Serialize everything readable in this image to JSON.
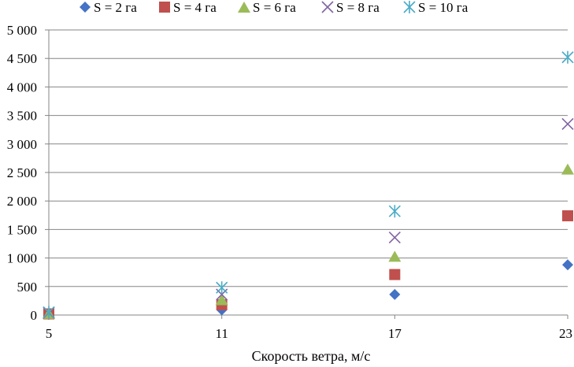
{
  "chart_data": {
    "type": "scatter",
    "title": "",
    "xlabel": "Скорость ветра, м/с",
    "ylabel": "",
    "x": [
      5,
      11,
      17,
      23
    ],
    "x_ticks": [
      "5",
      "11",
      "17",
      "23"
    ],
    "xlim": [
      5,
      23
    ],
    "ylim": [
      0,
      5000
    ],
    "y_ticks": [
      {
        "value": 0,
        "label": "0"
      },
      {
        "value": 500,
        "label": "500"
      },
      {
        "value": 1000,
        "label": "1 000"
      },
      {
        "value": 1500,
        "label": "1 500"
      },
      {
        "value": 2000,
        "label": "2 000"
      },
      {
        "value": 2500,
        "label": "2 500"
      },
      {
        "value": 3000,
        "label": "3 000"
      },
      {
        "value": 3500,
        "label": "3 500"
      },
      {
        "value": 4000,
        "label": "4 000"
      },
      {
        "value": 4500,
        "label": "4 500"
      },
      {
        "value": 5000,
        "label": "5 000"
      }
    ],
    "grid": "horizontal",
    "legend_position": "top",
    "series": [
      {
        "name": "S = 2 га",
        "marker": "diamond",
        "color": "#4472C4",
        "values": [
          10,
          90,
          360,
          880
        ]
      },
      {
        "name": "S = 4 га",
        "marker": "square",
        "color": "#C0504D",
        "values": [
          20,
          180,
          710,
          1740
        ]
      },
      {
        "name": "S = 6 га",
        "marker": "triangle",
        "color": "#9BBB59",
        "values": [
          30,
          270,
          1030,
          2560
        ]
      },
      {
        "name": "S = 8 га",
        "marker": "x",
        "color": "#8064A2",
        "values": [
          40,
          360,
          1360,
          3350
        ]
      },
      {
        "name": "S = 10 га",
        "marker": "star",
        "color": "#4BACC6",
        "values": [
          50,
          480,
          1820,
          4520
        ]
      }
    ]
  }
}
